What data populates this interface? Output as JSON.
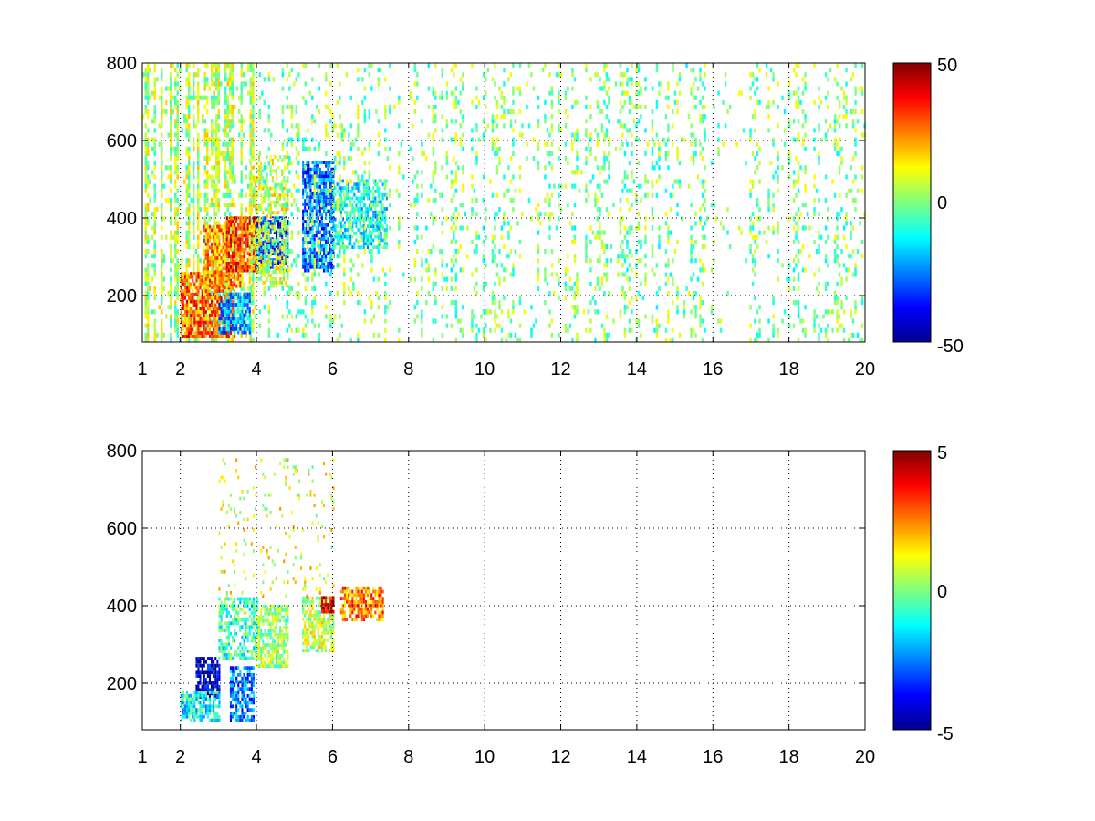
{
  "chart_data": [
    {
      "type": "heatmap",
      "title": "",
      "xlabel": "",
      "ylabel": "",
      "xlim": [
        1,
        20
      ],
      "ylim": [
        80,
        800
      ],
      "xticks": [
        "1",
        "2",
        "4",
        "6",
        "8",
        "10",
        "12",
        "14",
        "16",
        "18",
        "20"
      ],
      "yticks": [
        "200",
        "400",
        "600",
        "800"
      ],
      "grid": true,
      "colormap": "jet",
      "colorbar": {
        "min": -50,
        "max": 50,
        "ticks": [
          "50",
          "0",
          "-50"
        ]
      },
      "regions": [
        {
          "x": [
            1.0,
            4.0
          ],
          "y": [
            80,
            800
          ],
          "value": 5,
          "density": 0.35,
          "vertical_streaks": true
        },
        {
          "x": [
            2.0,
            3.4
          ],
          "y": [
            90,
            260
          ],
          "value": 28,
          "density": 0.8
        },
        {
          "x": [
            2.6,
            3.6
          ],
          "y": [
            220,
            380
          ],
          "value": 22,
          "density": 0.7
        },
        {
          "x": [
            3.0,
            3.8
          ],
          "y": [
            100,
            200
          ],
          "value": -22,
          "density": 0.75
        },
        {
          "x": [
            3.2,
            4.0
          ],
          "y": [
            260,
            400
          ],
          "value": 32,
          "density": 0.8
        },
        {
          "x": [
            4.0,
            4.8
          ],
          "y": [
            260,
            400
          ],
          "value": -30,
          "density": 0.8
        },
        {
          "x": [
            3.8,
            4.8
          ],
          "y": [
            220,
            560
          ],
          "value": 8,
          "density": 0.5
        },
        {
          "x": [
            5.2,
            6.0
          ],
          "y": [
            260,
            540
          ],
          "value": -28,
          "density": 0.75
        },
        {
          "x": [
            6.0,
            7.4
          ],
          "y": [
            320,
            500
          ],
          "value": -12,
          "density": 0.6
        },
        {
          "x": [
            4.0,
            20.0
          ],
          "y": [
            80,
            800
          ],
          "value": 0,
          "density": 0.12,
          "vertical_streaks": true
        }
      ]
    },
    {
      "type": "heatmap",
      "title": "",
      "xlabel": "",
      "ylabel": "",
      "xlim": [
        1,
        20
      ],
      "ylim": [
        80,
        800
      ],
      "xticks": [
        "1",
        "2",
        "4",
        "6",
        "8",
        "10",
        "12",
        "14",
        "16",
        "18",
        "20"
      ],
      "yticks": [
        "200",
        "400",
        "600",
        "800"
      ],
      "grid": true,
      "colormap": "jet",
      "colorbar": {
        "min": -5,
        "max": 5,
        "ticks": [
          "5",
          "0",
          "-5"
        ]
      },
      "regions": [
        {
          "x": [
            2.4,
            3.0
          ],
          "y": [
            160,
            260
          ],
          "value": -4.2,
          "density": 0.8
        },
        {
          "x": [
            2.0,
            3.0
          ],
          "y": [
            100,
            180
          ],
          "value": -1.2,
          "density": 0.7
        },
        {
          "x": [
            3.3,
            3.9
          ],
          "y": [
            100,
            240
          ],
          "value": -2.6,
          "density": 0.7
        },
        {
          "x": [
            3.0,
            4.0
          ],
          "y": [
            260,
            420
          ],
          "value": -0.6,
          "density": 0.6
        },
        {
          "x": [
            4.0,
            4.8
          ],
          "y": [
            240,
            400
          ],
          "value": 0.3,
          "density": 0.7
        },
        {
          "x": [
            5.2,
            6.0
          ],
          "y": [
            280,
            420
          ],
          "value": 0.6,
          "density": 0.7
        },
        {
          "x": [
            5.7,
            6.0
          ],
          "y": [
            380,
            420
          ],
          "value": 4.2,
          "density": 0.9
        },
        {
          "x": [
            6.2,
            7.3
          ],
          "y": [
            360,
            450
          ],
          "value": 2.4,
          "density": 0.75
        },
        {
          "x": [
            3.0,
            6.0
          ],
          "y": [
            420,
            780
          ],
          "value": 1.0,
          "density": 0.06
        }
      ]
    }
  ]
}
